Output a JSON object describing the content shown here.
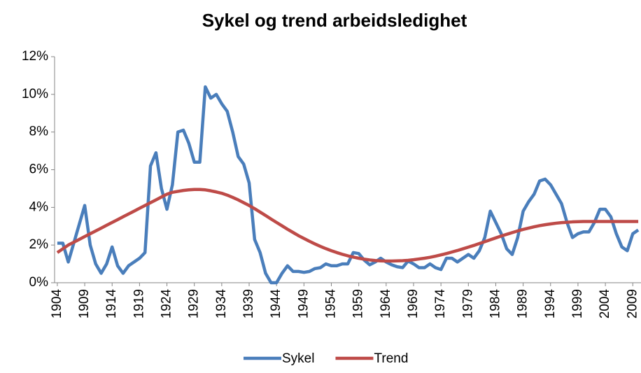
{
  "chart_data": {
    "type": "line",
    "title": "Sykel og trend arbeidsledighet",
    "x": [
      1904,
      1905,
      1906,
      1907,
      1908,
      1909,
      1910,
      1911,
      1912,
      1913,
      1914,
      1915,
      1916,
      1917,
      1918,
      1919,
      1920,
      1921,
      1922,
      1923,
      1924,
      1925,
      1926,
      1927,
      1928,
      1929,
      1930,
      1931,
      1932,
      1933,
      1934,
      1935,
      1936,
      1937,
      1938,
      1939,
      1940,
      1941,
      1942,
      1943,
      1944,
      1945,
      1946,
      1947,
      1948,
      1949,
      1950,
      1951,
      1952,
      1953,
      1954,
      1955,
      1956,
      1957,
      1958,
      1959,
      1960,
      1961,
      1962,
      1963,
      1964,
      1965,
      1966,
      1967,
      1968,
      1969,
      1970,
      1971,
      1972,
      1973,
      1974,
      1975,
      1976,
      1977,
      1978,
      1979,
      1980,
      1981,
      1982,
      1983,
      1984,
      1985,
      1986,
      1987,
      1988,
      1989,
      1990,
      1991,
      1992,
      1993,
      1994,
      1995,
      1996,
      1997,
      1998,
      1999,
      2000,
      2001,
      2002,
      2003,
      2004,
      2005,
      2006,
      2007,
      2008,
      2009,
      2010
    ],
    "series": [
      {
        "name": "Sykel",
        "color": "#4a7ebb",
        "values": [
          2.1,
          2.1,
          1.1,
          2.1,
          3.1,
          4.1,
          2.0,
          1.0,
          0.5,
          1.0,
          1.9,
          0.9,
          0.5,
          0.9,
          1.1,
          1.3,
          1.6,
          6.2,
          6.9,
          5.0,
          3.9,
          5.2,
          8.0,
          8.1,
          7.4,
          6.4,
          6.4,
          10.4,
          9.8,
          10.0,
          9.5,
          9.1,
          8.0,
          6.7,
          6.3,
          5.3,
          2.3,
          1.6,
          0.5,
          0.0,
          0.0,
          0.5,
          0.9,
          0.6,
          0.6,
          0.55,
          0.6,
          0.75,
          0.8,
          1.0,
          0.9,
          0.9,
          1.0,
          1.0,
          1.6,
          1.55,
          1.2,
          0.95,
          1.1,
          1.3,
          1.1,
          0.95,
          0.85,
          0.8,
          1.15,
          1.0,
          0.8,
          0.8,
          1.0,
          0.8,
          0.7,
          1.3,
          1.3,
          1.1,
          1.3,
          1.5,
          1.3,
          1.7,
          2.4,
          3.8,
          3.2,
          2.6,
          1.8,
          1.5,
          2.4,
          3.8,
          4.3,
          4.7,
          5.4,
          5.5,
          5.2,
          4.7,
          4.2,
          3.2,
          2.4,
          2.6,
          2.7,
          2.7,
          3.2,
          3.9,
          3.9,
          3.5,
          2.6,
          1.9,
          1.7,
          2.6,
          2.8
        ]
      },
      {
        "name": "Trend",
        "color": "#be4b48",
        "values": [
          1.6,
          1.8,
          2.0,
          2.15,
          2.3,
          2.45,
          2.6,
          2.75,
          2.9,
          3.05,
          3.2,
          3.35,
          3.5,
          3.65,
          3.8,
          3.95,
          4.1,
          4.25,
          4.4,
          4.55,
          4.7,
          4.8,
          4.85,
          4.9,
          4.93,
          4.95,
          4.95,
          4.93,
          4.88,
          4.82,
          4.75,
          4.65,
          4.53,
          4.4,
          4.25,
          4.1,
          3.93,
          3.75,
          3.57,
          3.38,
          3.2,
          3.02,
          2.84,
          2.67,
          2.5,
          2.35,
          2.2,
          2.06,
          1.93,
          1.81,
          1.7,
          1.6,
          1.51,
          1.43,
          1.36,
          1.3,
          1.25,
          1.21,
          1.18,
          1.16,
          1.15,
          1.15,
          1.16,
          1.17,
          1.19,
          1.22,
          1.26,
          1.3,
          1.35,
          1.41,
          1.48,
          1.55,
          1.63,
          1.71,
          1.8,
          1.89,
          1.98,
          2.08,
          2.18,
          2.28,
          2.38,
          2.48,
          2.57,
          2.66,
          2.75,
          2.83,
          2.9,
          2.97,
          3.03,
          3.08,
          3.12,
          3.16,
          3.19,
          3.21,
          3.23,
          3.24,
          3.25,
          3.25,
          3.25,
          3.25,
          3.25,
          3.25,
          3.25,
          3.25,
          3.25,
          3.25,
          3.25
        ]
      }
    ],
    "xlim": [
      1903.5,
      2010.5
    ],
    "xticks": [
      1904,
      1909,
      1914,
      1919,
      1924,
      1929,
      1934,
      1939,
      1944,
      1949,
      1954,
      1959,
      1964,
      1969,
      1974,
      1979,
      1984,
      1989,
      1994,
      1999,
      2004,
      2009
    ],
    "ylim": [
      0,
      12
    ],
    "yticks": [
      {
        "value": 0,
        "label": "0%"
      },
      {
        "value": 2,
        "label": "2%"
      },
      {
        "value": 4,
        "label": "4%"
      },
      {
        "value": 6,
        "label": "6%"
      },
      {
        "value": 8,
        "label": "8%"
      },
      {
        "value": 10,
        "label": "10%"
      },
      {
        "value": 12,
        "label": "12%"
      }
    ],
    "grid": false,
    "legend": "bottom"
  }
}
